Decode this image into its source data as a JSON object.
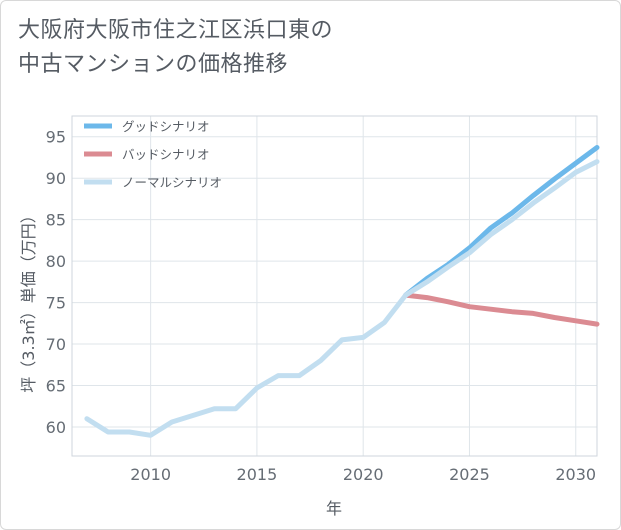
{
  "title_lines": [
    "大阪府大阪市住之江区浜口東の",
    "中古マンションの価格推移"
  ],
  "chart_data": {
    "type": "line",
    "title": "大阪府大阪市住之江区浜口東の中古マンションの価格推移",
    "xlabel": "年",
    "ylabel": "坪（3.3㎡）単価（万円）",
    "xlim": [
      2006.3,
      2031.0
    ],
    "ylim": [
      56.5,
      97.5
    ],
    "xticks": [
      2010,
      2015,
      2020,
      2025,
      2030
    ],
    "yticks": [
      60,
      65,
      70,
      75,
      80,
      85,
      90,
      95
    ],
    "grid": true,
    "legend_position": "top-left",
    "series": [
      {
        "name": "グッドシナリオ",
        "color": "#6cb8ea",
        "x": [
          2022,
          2023,
          2024,
          2025,
          2026,
          2027,
          2028,
          2029,
          2030,
          2031
        ],
        "y": [
          75.9,
          77.9,
          79.6,
          81.6,
          84.0,
          85.8,
          87.9,
          89.9,
          91.8,
          93.7
        ]
      },
      {
        "name": "バッドシナリオ",
        "color": "#db8b92",
        "x": [
          2022,
          2023,
          2024,
          2025,
          2026,
          2027,
          2028,
          2029,
          2030,
          2031
        ],
        "y": [
          75.9,
          75.6,
          75.1,
          74.5,
          74.2,
          73.9,
          73.7,
          73.2,
          72.8,
          72.4
        ]
      },
      {
        "name": "ノーマルシナリオ",
        "color": "#c2def0",
        "x": [
          2007,
          2008,
          2009,
          2010,
          2011,
          2012,
          2013,
          2014,
          2015,
          2016,
          2017,
          2018,
          2019,
          2020,
          2021,
          2022,
          2023,
          2024,
          2025,
          2026,
          2027,
          2028,
          2029,
          2030,
          2031
        ],
        "y": [
          61.0,
          59.4,
          59.4,
          59.0,
          60.6,
          61.4,
          62.2,
          62.2,
          64.7,
          66.2,
          66.2,
          68.0,
          70.5,
          70.8,
          72.6,
          75.9,
          77.5,
          79.3,
          81.0,
          83.2,
          85.0,
          87.0,
          88.8,
          90.7,
          92.0
        ]
      }
    ]
  }
}
